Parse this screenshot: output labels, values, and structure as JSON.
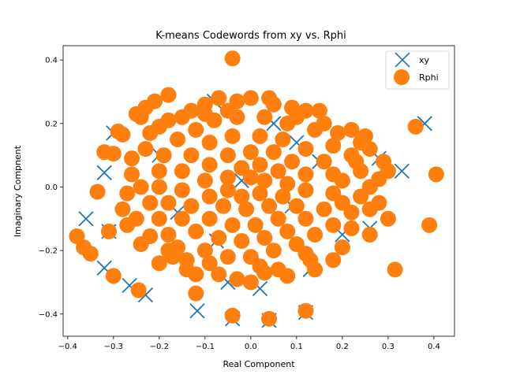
{
  "chart_data": {
    "type": "scatter",
    "title": "K-means Codewords from xy vs. Rphi",
    "xlabel": "Real Component",
    "ylabel": "Imaginary Compnent",
    "xlim": [
      -0.41,
      0.445
    ],
    "ylim": [
      -0.47,
      0.445
    ],
    "xticks": [
      -0.4,
      -0.3,
      -0.2,
      -0.1,
      0.0,
      0.1,
      0.2,
      0.3,
      0.4
    ],
    "xtick_labels": [
      "−0.4",
      "−0.3",
      "−0.2",
      "−0.1",
      "0.0",
      "0.1",
      "0.2",
      "0.3",
      "0.4"
    ],
    "yticks": [
      -0.4,
      -0.2,
      0.0,
      0.2,
      0.4
    ],
    "ytick_labels": [
      "−0.4",
      "−0.2",
      "0.0",
      "0.2",
      "0.4"
    ],
    "grid": false,
    "legend_position": "top-right",
    "series": [
      {
        "name": "xy",
        "marker": "x",
        "color": "#1f77b4",
        "points": [
          [
            -0.32,
            0.045
          ],
          [
            -0.36,
            -0.1
          ],
          [
            -0.31,
            -0.14
          ],
          [
            -0.32,
            -0.255
          ],
          [
            -0.265,
            -0.31
          ],
          [
            -0.23,
            -0.34
          ],
          [
            -0.117,
            -0.39
          ],
          [
            -0.04,
            -0.415
          ],
          [
            0.04,
            -0.42
          ],
          [
            0.02,
            -0.32
          ],
          [
            0.12,
            -0.395
          ],
          [
            -0.075,
            -0.17
          ],
          [
            -0.16,
            -0.08
          ],
          [
            -0.02,
            0.02
          ],
          [
            0.09,
            -0.06
          ],
          [
            0.15,
            0.08
          ],
          [
            0.2,
            -0.15
          ],
          [
            -0.2,
            0.1
          ],
          [
            0.05,
            0.2
          ],
          [
            -0.05,
            -0.3
          ],
          [
            0.26,
            -0.13
          ],
          [
            0.33,
            0.05
          ],
          [
            0.13,
            -0.26
          ],
          [
            -0.08,
            0.27
          ],
          [
            0.28,
            0.09
          ],
          [
            -0.3,
            0.17
          ],
          [
            0.1,
            0.14
          ],
          [
            0.38,
            0.2
          ]
        ]
      },
      {
        "name": "Rphi",
        "marker": "o",
        "color": "#ff7f0e",
        "points": [
          [
            -0.04,
            0.405
          ],
          [
            0.36,
            0.19
          ],
          [
            0.405,
            0.04
          ],
          [
            0.39,
            -0.12
          ],
          [
            0.315,
            -0.26
          ],
          [
            0.12,
            -0.39
          ],
          [
            0.04,
            -0.415
          ],
          [
            -0.04,
            -0.405
          ],
          [
            -0.12,
            -0.335
          ],
          [
            -0.3,
            -0.28
          ],
          [
            -0.245,
            -0.325
          ],
          [
            -0.38,
            -0.155
          ],
          [
            -0.365,
            -0.19
          ],
          [
            -0.35,
            -0.21
          ],
          [
            -0.31,
            -0.14
          ],
          [
            -0.335,
            -0.015
          ],
          [
            -0.32,
            0.11
          ],
          [
            -0.3,
            0.105
          ],
          [
            -0.29,
            0.175
          ],
          [
            -0.28,
            0.165
          ],
          [
            -0.25,
            0.23
          ],
          [
            -0.24,
            0.22
          ],
          [
            -0.23,
            0.25
          ],
          [
            -0.21,
            0.27
          ],
          [
            -0.18,
            0.29
          ],
          [
            -0.27,
            -0.02
          ],
          [
            -0.28,
            -0.07
          ],
          [
            -0.25,
            -0.1
          ],
          [
            -0.22,
            -0.155
          ],
          [
            -0.2,
            -0.24
          ],
          [
            -0.17,
            -0.22
          ],
          [
            -0.14,
            -0.23
          ],
          [
            -0.14,
            -0.26
          ],
          [
            -0.12,
            -0.275
          ],
          [
            -0.07,
            -0.275
          ],
          [
            -0.03,
            -0.29
          ],
          [
            0.0,
            -0.3
          ],
          [
            0.03,
            -0.27
          ],
          [
            0.06,
            -0.26
          ],
          [
            0.08,
            -0.28
          ],
          [
            0.14,
            -0.26
          ],
          [
            0.13,
            -0.23
          ],
          [
            0.18,
            -0.23
          ],
          [
            0.3,
            -0.1
          ],
          [
            0.28,
            -0.05
          ],
          [
            0.26,
            0.0
          ],
          [
            0.28,
            0.025
          ],
          [
            0.29,
            0.08
          ],
          [
            0.24,
            0.14
          ],
          [
            0.22,
            0.18
          ],
          [
            0.19,
            0.17
          ],
          [
            0.15,
            0.24
          ],
          [
            0.12,
            0.24
          ],
          [
            0.1,
            0.22
          ],
          [
            0.05,
            0.26
          ],
          [
            0.04,
            0.28
          ],
          [
            0.0,
            0.28
          ],
          [
            -0.03,
            0.27
          ],
          [
            -0.07,
            0.28
          ],
          [
            -0.1,
            0.26
          ],
          [
            -0.13,
            0.24
          ],
          [
            -0.15,
            0.22
          ],
          [
            -0.18,
            0.21
          ],
          [
            -0.2,
            0.19
          ],
          [
            -0.23,
            0.12
          ],
          [
            -0.26,
            0.04
          ],
          [
            -0.24,
            0.0
          ],
          [
            -0.22,
            -0.05
          ],
          [
            -0.2,
            -0.1
          ],
          [
            -0.18,
            -0.15
          ],
          [
            -0.16,
            -0.19
          ],
          [
            -0.1,
            -0.2
          ],
          [
            -0.05,
            -0.22
          ],
          [
            0.0,
            -0.22
          ],
          [
            0.05,
            -0.2
          ],
          [
            0.1,
            -0.18
          ],
          [
            0.14,
            -0.15
          ],
          [
            0.18,
            -0.12
          ],
          [
            0.22,
            -0.08
          ],
          [
            0.24,
            -0.03
          ],
          [
            0.24,
            0.05
          ],
          [
            0.22,
            0.1
          ],
          [
            0.18,
            0.13
          ],
          [
            0.14,
            0.18
          ],
          [
            0.08,
            0.2
          ],
          [
            0.03,
            0.22
          ],
          [
            -0.03,
            0.22
          ],
          [
            -0.08,
            0.21
          ],
          [
            -0.12,
            0.18
          ],
          [
            -0.16,
            0.15
          ],
          [
            -0.19,
            0.1
          ],
          [
            -0.2,
            0.05
          ],
          [
            -0.2,
            0.0
          ],
          [
            -0.18,
            -0.05
          ],
          [
            -0.15,
            -0.1
          ],
          [
            -0.12,
            -0.14
          ],
          [
            -0.07,
            -0.16
          ],
          [
            -0.02,
            -0.17
          ],
          [
            0.03,
            -0.16
          ],
          [
            0.08,
            -0.14
          ],
          [
            0.12,
            -0.1
          ],
          [
            0.16,
            -0.07
          ],
          [
            0.18,
            -0.02
          ],
          [
            0.18,
            0.04
          ],
          [
            0.16,
            0.08
          ],
          [
            0.12,
            0.12
          ],
          [
            0.07,
            0.15
          ],
          [
            0.02,
            0.16
          ],
          [
            -0.04,
            0.16
          ],
          [
            -0.09,
            0.14
          ],
          [
            -0.13,
            0.1
          ],
          [
            -0.15,
            0.05
          ],
          [
            -0.15,
            -0.01
          ],
          [
            -0.13,
            -0.06
          ],
          [
            -0.09,
            -0.1
          ],
          [
            -0.04,
            -0.12
          ],
          [
            0.01,
            -0.12
          ],
          [
            0.06,
            -0.1
          ],
          [
            0.1,
            -0.06
          ],
          [
            0.12,
            -0.01
          ],
          [
            0.12,
            0.04
          ],
          [
            0.09,
            0.08
          ],
          [
            0.05,
            0.11
          ],
          [
            0.0,
            0.11
          ],
          [
            -0.05,
            0.1
          ],
          [
            -0.09,
            0.07
          ],
          [
            -0.1,
            0.02
          ],
          [
            -0.09,
            -0.03
          ],
          [
            -0.06,
            -0.06
          ],
          [
            -0.01,
            -0.07
          ],
          [
            0.04,
            -0.06
          ],
          [
            0.07,
            -0.03
          ],
          [
            0.08,
            0.01
          ],
          [
            0.06,
            0.05
          ],
          [
            0.02,
            0.07
          ],
          [
            -0.02,
            0.06
          ],
          [
            -0.05,
            0.03
          ],
          [
            -0.05,
            -0.01
          ],
          [
            -0.02,
            -0.03
          ],
          [
            0.02,
            -0.02
          ],
          [
            0.03,
            0.02
          ],
          [
            0.0,
            0.03
          ],
          [
            0.2,
            0.02
          ],
          [
            0.22,
            -0.13
          ],
          [
            0.26,
            -0.15
          ],
          [
            0.2,
            -0.19
          ],
          [
            0.25,
            0.16
          ],
          [
            0.26,
            0.12
          ],
          [
            -0.1,
            0.23
          ],
          [
            0.09,
            0.25
          ],
          [
            0.16,
            0.2
          ],
          [
            -0.26,
            0.09
          ],
          [
            -0.27,
            -0.12
          ],
          [
            -0.24,
            -0.18
          ],
          [
            0.02,
            -0.25
          ],
          [
            -0.09,
            -0.24
          ],
          [
            0.2,
            -0.05
          ],
          [
            0.23,
            0.08
          ],
          [
            -0.22,
            0.17
          ],
          [
            -0.05,
            0.24
          ],
          [
            0.12,
            -0.21
          ],
          [
            -0.18,
            -0.2
          ],
          [
            0.3,
            0.05
          ],
          [
            0.26,
            -0.07
          ]
        ]
      }
    ]
  }
}
